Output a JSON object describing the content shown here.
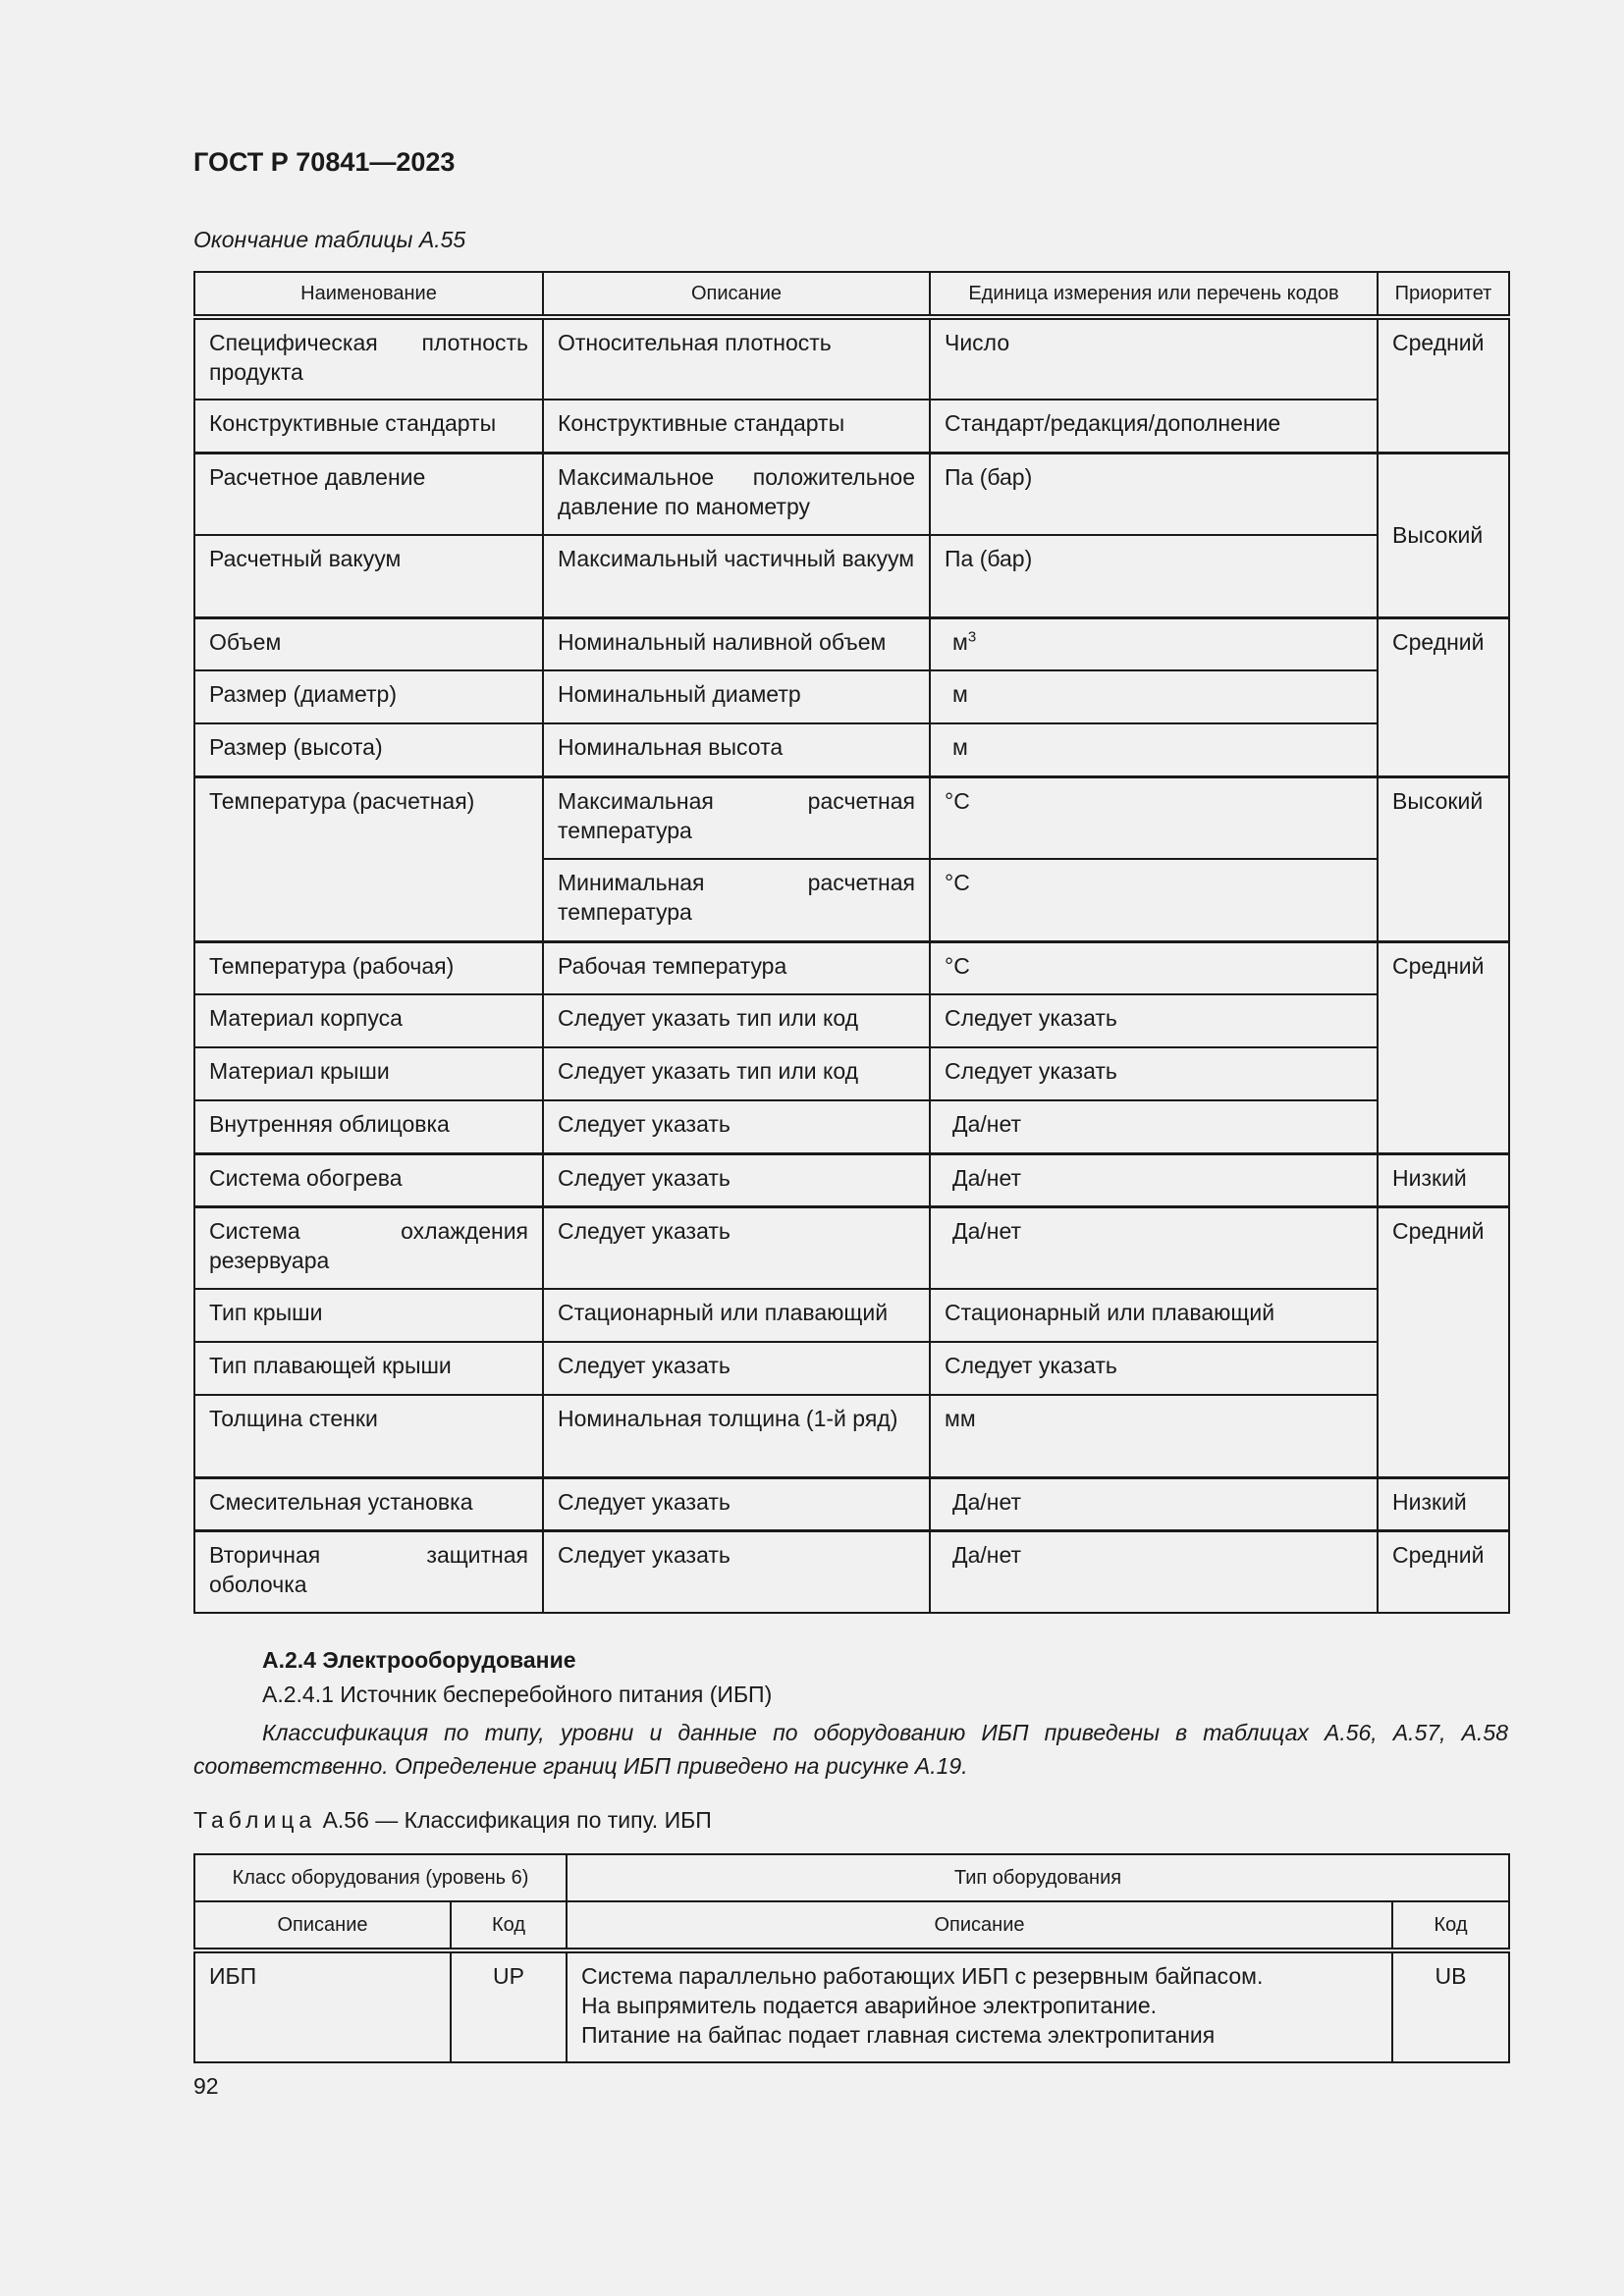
{
  "header": {
    "doc_title": "ГОСТ Р 70841—2023",
    "continuation": "Окончание таблицы А.55"
  },
  "table_a55": {
    "columns": [
      "Наименование",
      "Описание",
      "Единица измерения или перечень кодов",
      "Приоритет"
    ],
    "rows": [
      {
        "name": "Специфическая плотность продукта",
        "desc": "Относительная плотность",
        "unit": "Число",
        "priority": "Средний"
      },
      {
        "name": "Конструктивные стандарты",
        "desc": "Конструктивные стандарты",
        "unit": "Стандарт/редакция/дополнение"
      },
      {
        "name": "Расчетное давление",
        "desc": "Максимальное положительное давление по манометру",
        "unit": "Па (бар)",
        "priority": "Высокий"
      },
      {
        "name": "Расчетный вакуум",
        "desc": "Максимальный частичный вакуум",
        "unit": "Па (бар)"
      },
      {
        "name": "Объем",
        "desc": "Номинальный наливной объем",
        "unit": "м",
        "unit_sup": "3",
        "priority": "Средний"
      },
      {
        "name": "Размер (диаметр)",
        "desc": "Номинальный диаметр",
        "unit": "м"
      },
      {
        "name": "Размер (высота)",
        "desc": "Номинальная высота",
        "unit": "м"
      },
      {
        "name": "Температура (расчетная)",
        "desc": "Максимальная расчетная температура",
        "unit": "°С",
        "priority": "Высокий"
      },
      {
        "desc": "Минимальная расчетная температура",
        "unit": "°С"
      },
      {
        "name": "Температура (рабочая)",
        "desc": "Рабочая температура",
        "unit": "°С",
        "priority": "Средний"
      },
      {
        "name": "Материал корпуса",
        "desc": "Следует указать тип или код",
        "unit": "Следует указать"
      },
      {
        "name": "Материал крыши",
        "desc": "Следует указать тип или код",
        "unit": "Следует указать"
      },
      {
        "name": "Внутренняя облицовка",
        "desc": "Следует указать",
        "unit": "Да/нет"
      },
      {
        "name": "Система обогрева",
        "desc": "Следует указать",
        "unit": "Да/нет",
        "priority": "Низкий"
      },
      {
        "name": "Система охлаждения резервуара",
        "desc": "Следует указать",
        "unit": "Да/нет",
        "priority": "Средний"
      },
      {
        "name": "Тип крыши",
        "desc": "Стационарный или плавающий",
        "unit": "Стационарный или плавающий"
      },
      {
        "name": "Тип плавающей крыши",
        "desc": "Следует указать",
        "unit": "Следует указать"
      },
      {
        "name": "Толщина стенки",
        "desc": "Номинальная толщина (1-й ряд)",
        "unit": "мм"
      },
      {
        "name": "Смесительная установка",
        "desc": "Следует указать",
        "unit": "Да/нет",
        "priority": "Низкий"
      },
      {
        "name": "Вторичная защитная оболочка",
        "desc": "Следует указать",
        "unit": "Да/нет",
        "priority": "Средний"
      }
    ]
  },
  "section": {
    "heading": "А.2.4  Электрооборудование",
    "subheading": "А.2.4.1  Источник бесперебойного питания (ИБП)",
    "paragraph": "Классификация по типу, уровни и данные по оборудованию ИБП приведены в таблицах А.56, А.57, А.58 соответственно. Определение границ ИБП приведено на рисунке А.19."
  },
  "table_a56": {
    "caption_word": "Таблица",
    "caption_rest": "А.56 — Классификация по типу. ИБП",
    "group1": "Класс оборудования (уровень 6)",
    "group2": "Тип оборудования",
    "sub": [
      "Описание",
      "Код",
      "Описание",
      "Код"
    ],
    "row": {
      "class_desc": "ИБП",
      "class_code": "UP",
      "type_desc_lines": [
        "Система параллельно работающих ИБП с резервным байпасом.",
        "На выпрямитель подается аварийное электропитание.",
        "Питание на байпас подает главная система электропитания"
      ],
      "type_code": "UB"
    }
  },
  "footer": {
    "page_number": "92"
  }
}
